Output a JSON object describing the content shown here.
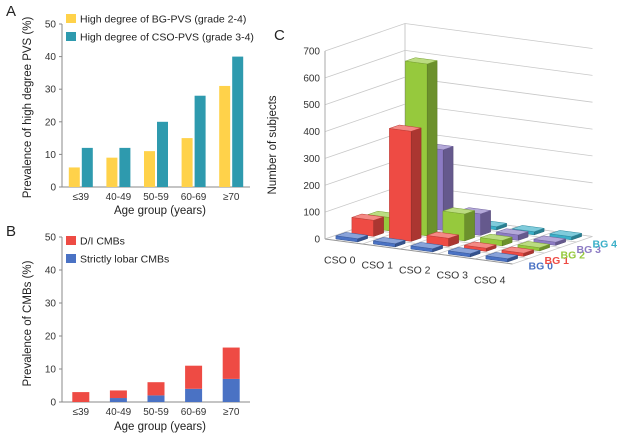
{
  "chart_data": [
    {
      "panel": "A",
      "type": "bar",
      "categories": [
        "≤39",
        "40-49",
        "50-59",
        "60-69",
        "≥70"
      ],
      "series": [
        {
          "name": "High degree of BG-PVS (grade 2-4)",
          "color": "#FFD24A",
          "values": [
            6,
            9,
            11,
            15,
            31
          ]
        },
        {
          "name": "High degree of CSO-PVS (grade 3-4)",
          "color": "#2E9AAE",
          "values": [
            12,
            12,
            20,
            28,
            40
          ]
        }
      ],
      "xlabel": "Age group (years)",
      "ylabel": "Prevalence of high degree PVS (%)",
      "ylim": [
        0,
        50
      ],
      "yticks": [
        0,
        10,
        20,
        30,
        40,
        50
      ],
      "legend": "top-left",
      "grid": false
    },
    {
      "panel": "B",
      "type": "bar",
      "stacked": true,
      "categories": [
        "≤39",
        "40-49",
        "50-59",
        "60-69",
        "≥70"
      ],
      "series": [
        {
          "name": "Strictly lobar CMBs",
          "color": "#4A72C4",
          "values": [
            0,
            1.2,
            2,
            4,
            7
          ]
        },
        {
          "name": "D/I CMBs",
          "color": "#EE4B44",
          "values": [
            3,
            2.3,
            4,
            7,
            9.5
          ]
        }
      ],
      "legend_order": [
        "D/I CMBs",
        "Strictly lobar CMBs"
      ],
      "xlabel": "Age group (years)",
      "ylabel": "Prevalence of CMBs (%)",
      "ylim": [
        0,
        50
      ],
      "yticks": [
        0,
        10,
        20,
        30,
        40,
        50
      ],
      "legend": "top-left",
      "grid": false
    },
    {
      "panel": "C",
      "type": "bar3d",
      "x_categories": [
        "CSO 0",
        "CSO 1",
        "CSO 2",
        "CSO 3",
        "CSO 4"
      ],
      "depth_categories": [
        "BG 0",
        "BG 1",
        "BG 2",
        "BG 3",
        "BG 4"
      ],
      "depth_colors": [
        "#4A72C4",
        "#EE4B44",
        "#96C93D",
        "#8C7BC4",
        "#3AAFC8"
      ],
      "values": [
        [
          5,
          60,
          50,
          5,
          2
        ],
        [
          4,
          410,
          640,
          300,
          5
        ],
        [
          2,
          30,
          100,
          80,
          2
        ],
        [
          1,
          5,
          20,
          20,
          2
        ],
        [
          1,
          2,
          5,
          5,
          2
        ]
      ],
      "ylabel": "Number of subjects",
      "zlim": [
        0,
        700
      ],
      "zticks": [
        0,
        100,
        200,
        300,
        400,
        500,
        600,
        700
      ],
      "grid": true
    }
  ]
}
